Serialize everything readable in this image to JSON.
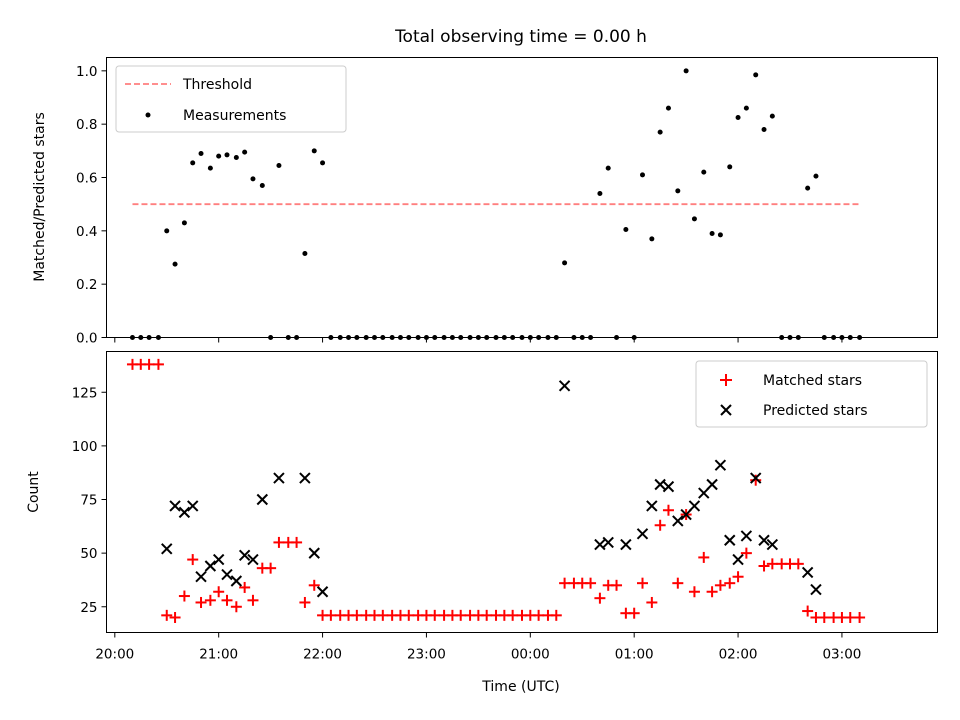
{
  "colors": {
    "threshold": "#ff7f7f",
    "measurement": "#000000",
    "matched": "#ff0000",
    "predicted": "#000000",
    "background": "#ffffff"
  },
  "chart_data": [
    {
      "type": "scatter",
      "title": "Total observing time = 0.00 h",
      "xlabel": "",
      "ylabel": "Matched/Predicted stars",
      "xlim": [
        -0.08,
        7.92
      ],
      "ylim": [
        0.0,
        1.05
      ],
      "xticks": [
        0,
        1,
        2,
        3,
        4,
        5,
        6,
        7
      ],
      "xticklabels_shown": false,
      "yticks": [
        0.0,
        0.2,
        0.4,
        0.6,
        0.8,
        1.0
      ],
      "yticklabels": [
        "0.0",
        "0.2",
        "0.4",
        "0.6",
        "0.8",
        "1.0"
      ],
      "legend": {
        "position": "upper left",
        "entries": [
          "Threshold",
          "Measurements"
        ]
      },
      "threshold": {
        "name": "Threshold",
        "value": 0.5,
        "x": [
          0.17,
          7.17
        ],
        "style": "dashed"
      },
      "series": [
        {
          "name": "Measurements",
          "marker": "dot",
          "x": [
            0.17,
            0.25,
            0.33,
            0.42,
            0.5,
            0.58,
            0.67,
            0.75,
            0.83,
            0.92,
            1.0,
            1.08,
            1.17,
            1.25,
            1.33,
            1.42,
            1.5,
            1.58,
            1.67,
            1.75,
            1.83,
            1.92,
            2.0,
            2.08,
            2.17,
            2.25,
            2.33,
            2.42,
            2.5,
            2.58,
            2.67,
            2.75,
            2.83,
            2.92,
            3.0,
            3.08,
            3.17,
            3.25,
            3.33,
            3.42,
            3.5,
            3.58,
            3.67,
            3.75,
            3.83,
            3.92,
            4.0,
            4.08,
            4.17,
            4.25,
            4.33,
            4.42,
            4.5,
            4.58,
            4.67,
            4.75,
            4.83,
            4.92,
            5.0,
            5.08,
            5.17,
            5.25,
            5.33,
            5.42,
            5.5,
            5.58,
            5.67,
            5.75,
            5.83,
            5.92,
            6.0,
            6.08,
            6.17,
            6.25,
            6.33,
            6.42,
            6.5,
            6.58,
            6.67,
            6.75,
            6.83,
            6.92,
            7.0,
            7.08,
            7.17
          ],
          "y": [
            0.0,
            0.0,
            0.0,
            0.0,
            0.4,
            0.275,
            0.43,
            0.655,
            0.69,
            0.635,
            0.68,
            0.685,
            0.675,
            0.695,
            0.595,
            0.57,
            0.0,
            0.645,
            0.0,
            0.0,
            0.315,
            0.7,
            0.655,
            0.0,
            0.0,
            0.0,
            0.0,
            0.0,
            0.0,
            0.0,
            0.0,
            0.0,
            0.0,
            0.0,
            0.0,
            0.0,
            0.0,
            0.0,
            0.0,
            0.0,
            0.0,
            0.0,
            0.0,
            0.0,
            0.0,
            0.0,
            0.0,
            0.0,
            0.0,
            0.0,
            0.28,
            0.0,
            0.0,
            0.0,
            0.54,
            0.635,
            0.0,
            0.405,
            0.0,
            0.61,
            0.37,
            0.77,
            0.86,
            0.55,
            1.0,
            0.445,
            0.62,
            0.39,
            0.385,
            0.64,
            0.825,
            0.86,
            0.985,
            0.78,
            0.83,
            0.0,
            0.0,
            0.0,
            0.56,
            0.605,
            0.0,
            0.0,
            0.0,
            0.0,
            0.0
          ]
        }
      ]
    },
    {
      "type": "scatter",
      "title": "",
      "xlabel": "Time (UTC)",
      "ylabel": "Count",
      "xlim": [
        -0.08,
        7.92
      ],
      "ylim": [
        13,
        144
      ],
      "xticks": [
        0,
        1,
        2,
        3,
        4,
        5,
        6,
        7
      ],
      "xticklabels": [
        "20:00",
        "21:00",
        "22:00",
        "23:00",
        "00:00",
        "01:00",
        "02:00",
        "03:00"
      ],
      "yticks": [
        25,
        50,
        75,
        100,
        125
      ],
      "yticklabels": [
        "25",
        "50",
        "75",
        "100",
        "125"
      ],
      "legend": {
        "position": "upper right",
        "entries": [
          "Matched stars",
          "Predicted stars"
        ]
      },
      "series": [
        {
          "name": "Matched stars",
          "marker": "plus",
          "x": [
            0.17,
            0.25,
            0.33,
            0.42,
            0.5,
            0.58,
            0.67,
            0.75,
            0.83,
            0.92,
            1.0,
            1.08,
            1.17,
            1.25,
            1.33,
            1.42,
            1.5,
            1.58,
            1.67,
            1.75,
            1.83,
            1.92,
            2.0,
            2.08,
            2.17,
            2.25,
            2.33,
            2.42,
            2.5,
            2.58,
            2.67,
            2.75,
            2.83,
            2.92,
            3.0,
            3.08,
            3.17,
            3.25,
            3.33,
            3.42,
            3.5,
            3.58,
            3.67,
            3.75,
            3.83,
            3.92,
            4.0,
            4.08,
            4.17,
            4.25,
            4.33,
            4.42,
            4.5,
            4.58,
            4.67,
            4.75,
            4.83,
            4.92,
            5.0,
            5.08,
            5.17,
            5.25,
            5.33,
            5.42,
            5.5,
            5.58,
            5.67,
            5.75,
            5.83,
            5.92,
            6.0,
            6.08,
            6.17,
            6.25,
            6.33,
            6.42,
            6.5,
            6.58,
            6.67,
            6.75,
            6.83,
            6.92,
            7.0,
            7.08,
            7.17
          ],
          "y": [
            138,
            138,
            138,
            138,
            21,
            20,
            30,
            47,
            27,
            28,
            32,
            28,
            25,
            34,
            28,
            43,
            43,
            55,
            55,
            55,
            27,
            35,
            21,
            21,
            21,
            21,
            21,
            21,
            21,
            21,
            21,
            21,
            21,
            21,
            21,
            21,
            21,
            21,
            21,
            21,
            21,
            21,
            21,
            21,
            21,
            21,
            21,
            21,
            21,
            21,
            36,
            36,
            36,
            36,
            29,
            35,
            35,
            22,
            22,
            36,
            27,
            63,
            70,
            36,
            68,
            32,
            48,
            32,
            35,
            36,
            39,
            50,
            84,
            44,
            45,
            45,
            45,
            45,
            23,
            20,
            20,
            20,
            20,
            20,
            20
          ]
        },
        {
          "name": "Predicted stars",
          "marker": "x",
          "x": [
            0.5,
            0.58,
            0.67,
            0.75,
            0.83,
            0.92,
            1.0,
            1.08,
            1.17,
            1.25,
            1.33,
            1.42,
            1.58,
            1.83,
            1.92,
            2.0,
            4.33,
            4.67,
            4.75,
            4.92,
            5.08,
            5.17,
            5.25,
            5.33,
            5.42,
            5.5,
            5.58,
            5.67,
            5.75,
            5.83,
            5.92,
            6.0,
            6.08,
            6.17,
            6.25,
            6.33,
            6.67,
            6.75
          ],
          "y": [
            52,
            72,
            69,
            72,
            39,
            44,
            47,
            40,
            37,
            49,
            47,
            75,
            85,
            85,
            50,
            32,
            128,
            54,
            55,
            54,
            59,
            72,
            82,
            81,
            65,
            68,
            72,
            78,
            82,
            91,
            56,
            47,
            58,
            85,
            56,
            54,
            41,
            33
          ]
        }
      ]
    }
  ]
}
